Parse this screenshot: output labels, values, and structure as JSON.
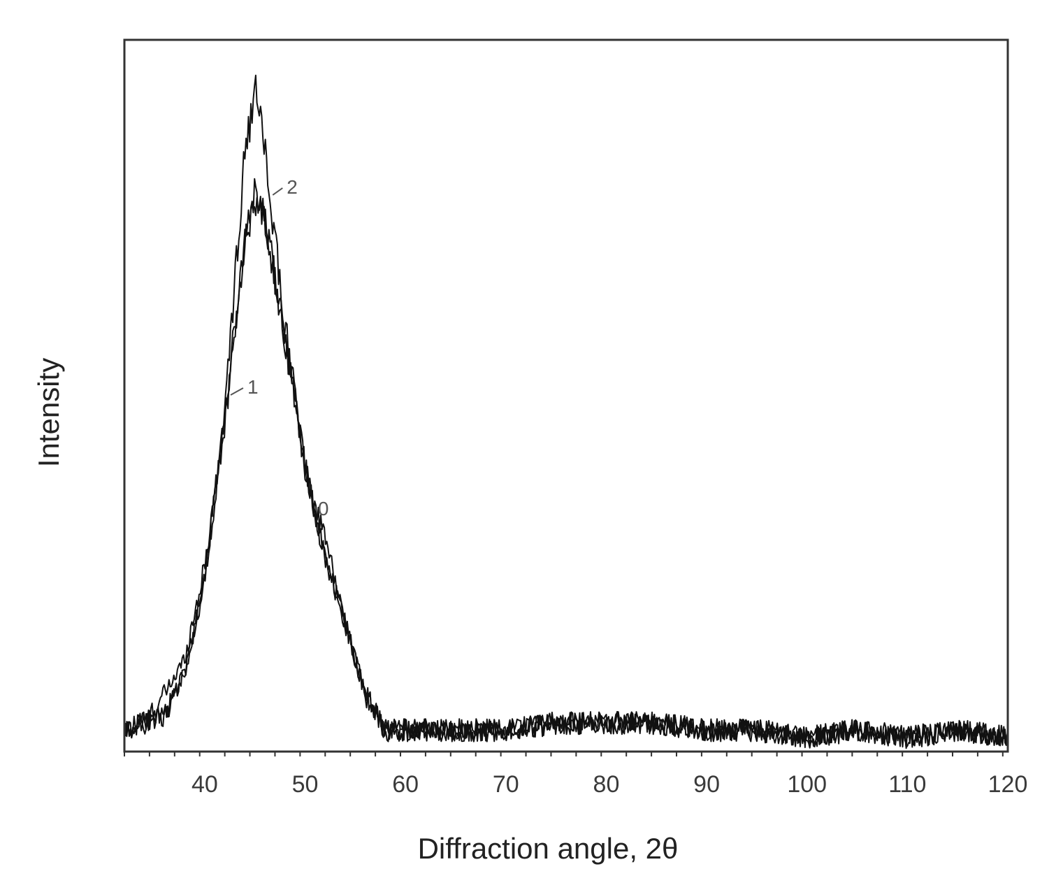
{
  "chart_data": {
    "type": "line",
    "title": "",
    "xlabel": "Diffraction angle, 2θ",
    "ylabel": "Intensity",
    "xlim": [
      32,
      120
    ],
    "ylim": [
      0,
      100
    ],
    "xticks_labeled": [
      40,
      50,
      60,
      70,
      80,
      90,
      100,
      110,
      120
    ],
    "xticks_minor_step": 2.5,
    "yticks_labeled": [],
    "grid": false,
    "legend": "none",
    "line_color": "#111111",
    "series": [
      {
        "name": "0",
        "x": [
          32,
          34,
          36,
          38,
          40,
          42,
          44,
          45,
          46,
          48,
          50,
          51,
          52,
          54,
          56,
          58,
          60,
          65,
          70,
          75,
          80,
          85,
          90,
          95,
          100,
          105,
          110,
          115,
          120
        ],
        "y": [
          3,
          4,
          8,
          13,
          26,
          47,
          72,
          78,
          75,
          58,
          40,
          34,
          30,
          18,
          8,
          3,
          3,
          3,
          3,
          4,
          4,
          4,
          3,
          3,
          2,
          3,
          2,
          3,
          2
        ]
      },
      {
        "name": "1",
        "x": [
          32,
          34,
          36,
          38,
          40,
          42,
          44,
          45,
          46,
          48,
          50,
          52,
          54,
          56,
          58,
          60,
          65,
          70,
          75,
          80,
          85,
          90,
          95,
          100,
          105,
          110,
          115,
          120
        ],
        "y": [
          3,
          4,
          5,
          11,
          24,
          46,
          72,
          79,
          75,
          58,
          40,
          27,
          18,
          8,
          3,
          3,
          3,
          3,
          4,
          4,
          4,
          3,
          3,
          2,
          3,
          2,
          3,
          2
        ]
      },
      {
        "name": "2",
        "x": [
          32,
          34,
          36,
          38,
          40,
          42,
          44,
          45,
          46,
          48,
          50,
          52,
          54,
          56,
          58,
          60,
          65,
          70,
          75,
          80,
          85,
          90,
          95,
          100,
          105,
          110,
          115,
          120
        ],
        "y": [
          3,
          4,
          5,
          11,
          24,
          48,
          84,
          93,
          84,
          60,
          40,
          27,
          18,
          8,
          3,
          3,
          3,
          3,
          4,
          4,
          4,
          3,
          3,
          2,
          3,
          2,
          3,
          2
        ]
      }
    ]
  }
}
